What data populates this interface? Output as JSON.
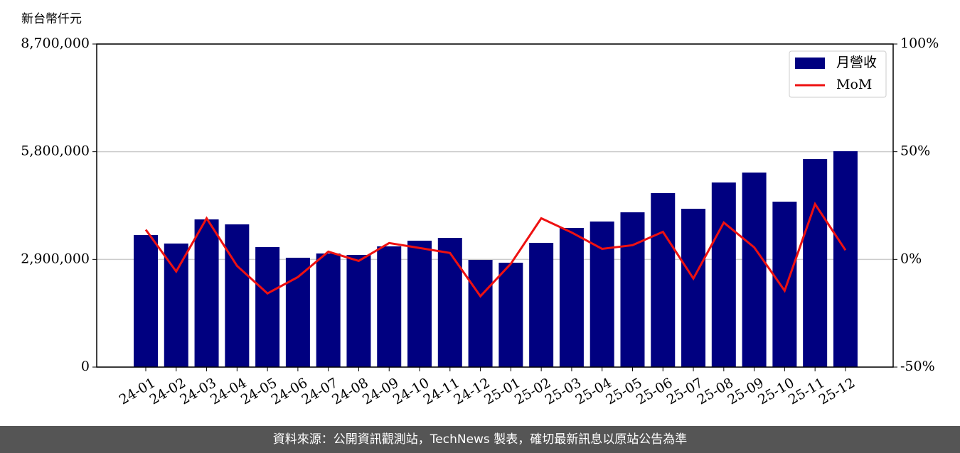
{
  "chart_data": {
    "type": "bar_line",
    "y_axis_label": "新台幣仟元",
    "categories": [
      "24-01",
      "24-02",
      "24-03",
      "24-04",
      "24-05",
      "24-06",
      "24-07",
      "24-08",
      "24-09",
      "24-10",
      "24-11",
      "24-12",
      "25-01",
      "25-02",
      "25-03",
      "25-04",
      "25-05",
      "25-06",
      "25-07",
      "25-08",
      "25-09",
      "25-10",
      "25-11",
      "25-12"
    ],
    "series": [
      {
        "name": "月營收",
        "color": "#000080",
        "type": "bar",
        "values": [
          3556000,
          3327000,
          3977000,
          3843000,
          3231000,
          2945000,
          3059000,
          3021000,
          3251000,
          3404000,
          3480000,
          2887000,
          2811000,
          3346000,
          3748000,
          3920000,
          4168000,
          4685000,
          4264000,
          4971000,
          5239000,
          4455000,
          5602000,
          5813000
        ]
      },
      {
        "name": "MoM",
        "color": "#ee1111",
        "type": "line",
        "axis": "y2",
        "values": [
          13.8,
          -5.6,
          19.1,
          -3.0,
          -15.8,
          -8.2,
          3.6,
          -0.7,
          7.6,
          5.3,
          3.0,
          -17.1,
          -2.0,
          19.1,
          12.5,
          4.9,
          6.6,
          12.8,
          -8.9,
          17.1,
          5.6,
          -14.5,
          25.7,
          4.3
        ]
      }
    ],
    "ylim": [
      0,
      8700000
    ],
    "yticks": [
      0,
      {
        "value": 2900000,
        "label": "2,900,000"
      },
      {
        "value": 5800000,
        "label": "5,800,000"
      },
      {
        "value": 8700000,
        "label": "8,700,000"
      }
    ],
    "y2lim": [
      -50,
      100
    ],
    "y2ticks": [
      {
        "value": -50,
        "label": "-50%"
      },
      {
        "value": 0,
        "label": "0%"
      },
      {
        "value": 50,
        "label": "50%"
      },
      {
        "value": 100,
        "label": "100%"
      }
    ],
    "grid": true,
    "legend": "upper right",
    "footer": "資料來源：公開資訊觀測站，TechNews 製表，確切最新訊息以原站公告為準"
  }
}
